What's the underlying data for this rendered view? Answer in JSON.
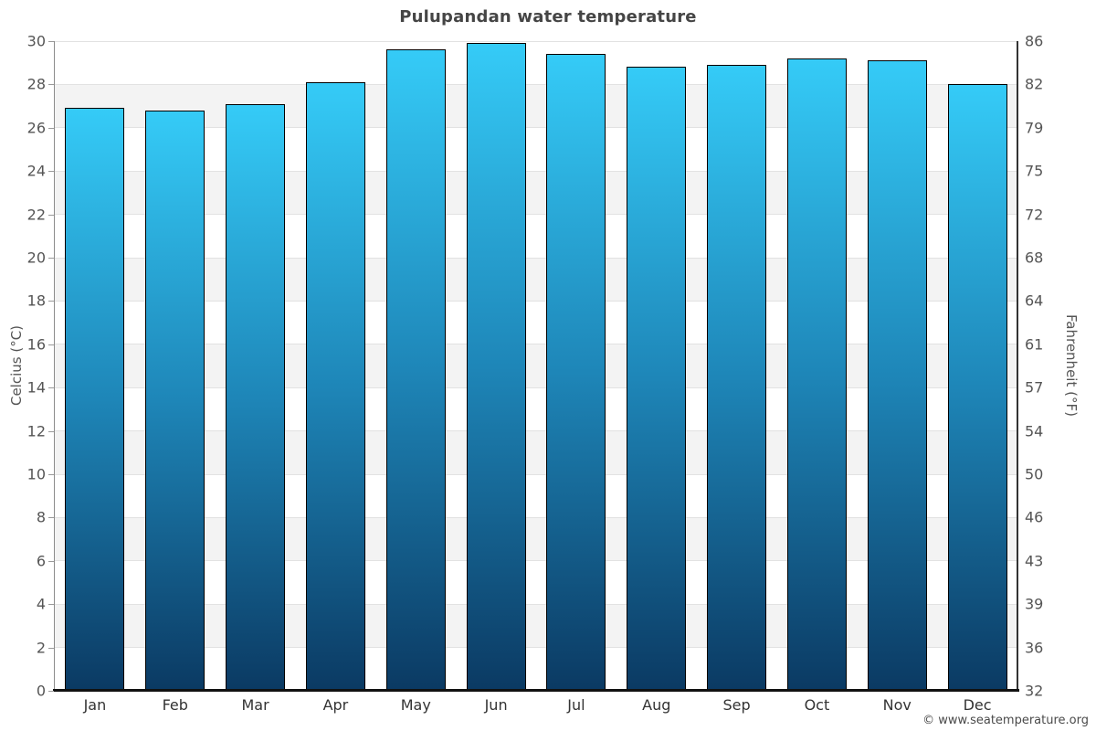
{
  "chart_data": {
    "type": "bar",
    "title": "Pulupandan water temperature",
    "categories": [
      "Jan",
      "Feb",
      "Mar",
      "Apr",
      "May",
      "Jun",
      "Jul",
      "Aug",
      "Sep",
      "Oct",
      "Nov",
      "Dec"
    ],
    "values": [
      26.9,
      26.8,
      27.1,
      28.1,
      29.6,
      29.9,
      29.4,
      28.8,
      28.9,
      29.2,
      29.1,
      28.0
    ],
    "ylabel_left": "Celcius (°C)",
    "ylabel_right": "Fahrenheit (°F)",
    "yticks_celsius": [
      30,
      28,
      26,
      24,
      22,
      20,
      18,
      16,
      14,
      12,
      10,
      8,
      6,
      4,
      2,
      0
    ],
    "yticks_fahrenheit": [
      86,
      82,
      79,
      75,
      72,
      68,
      64,
      61,
      57,
      54,
      50,
      46,
      43,
      39,
      36,
      32
    ],
    "ylim": [
      0,
      30
    ],
    "grid": "horizontal gridlines with alternating shaded bands every 2°C",
    "legend": "none",
    "colors": {
      "bar_top": "#35cbf7",
      "bar_mid": "#1e86b8",
      "bar_bottom": "#0b3a63",
      "bar_border": "#000000",
      "band_shade": "#f3f3f3",
      "gridline": "#e2e2e2",
      "axis_text": "#555555",
      "title_text": "#454545"
    }
  },
  "footer": {
    "copyright": "© www.seatemperature.org"
  }
}
